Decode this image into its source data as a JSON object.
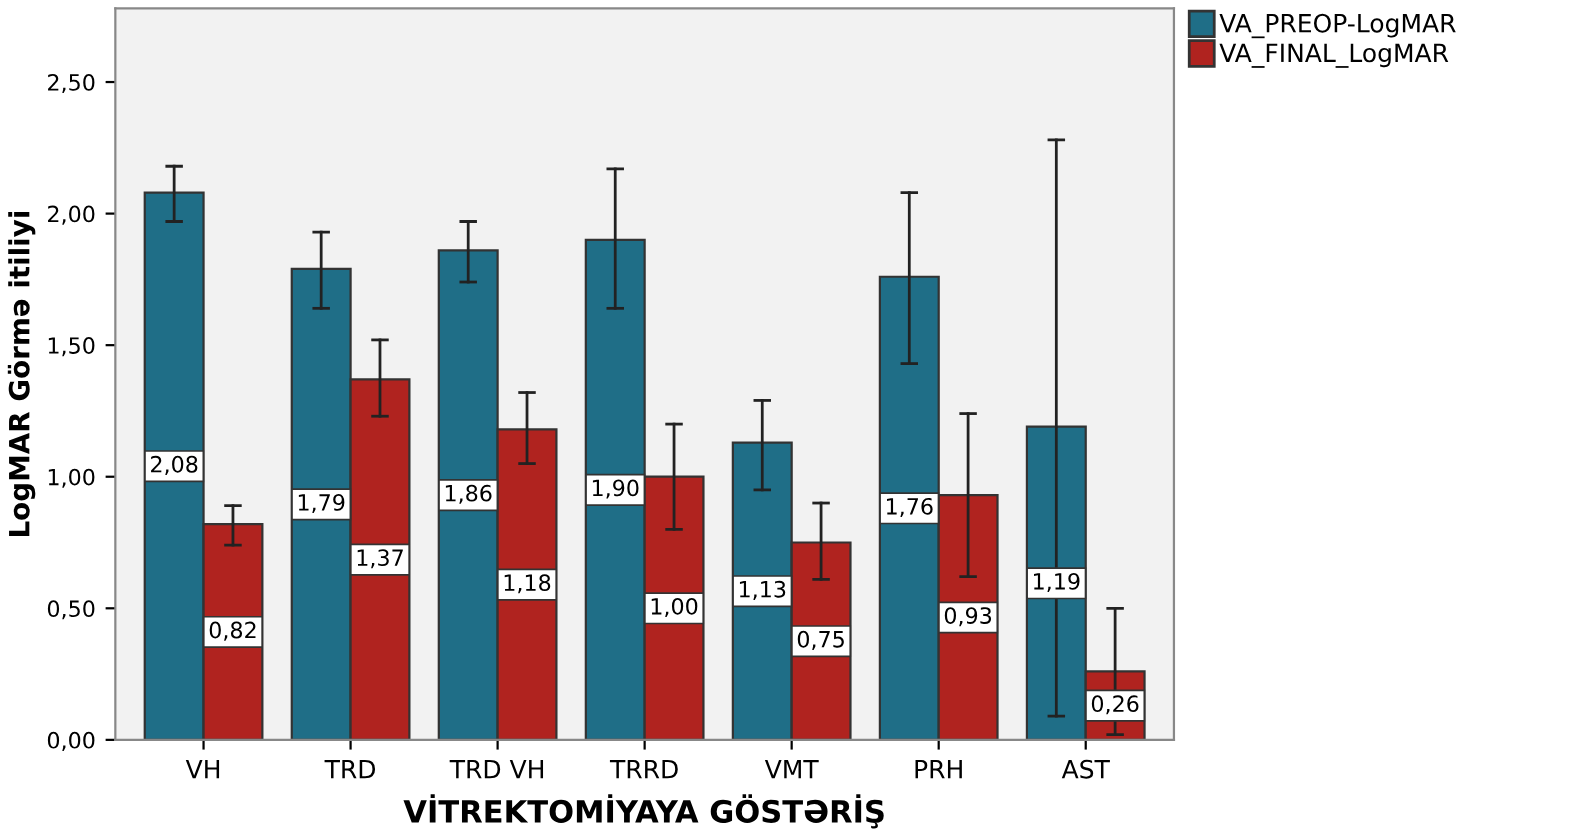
{
  "chart_data": {
    "type": "bar",
    "xlabel": "VİTREKTOMİYAYA GÖSTƏRİŞ",
    "ylabel": "LogMAR Görmə itiliyi",
    "categories": [
      "VH",
      "TRD",
      "TRD VH",
      "TRRD",
      "VMT",
      "PRH",
      "AST"
    ],
    "series": [
      {
        "name": "VA_PREOP-LogMAR",
        "color": "#1f6e87",
        "values": [
          2.08,
          1.79,
          1.86,
          1.9,
          1.13,
          1.76,
          1.19
        ],
        "value_labels": [
          "2,08",
          "1,79",
          "1,86",
          "1,90",
          "1,13",
          "1,76",
          "1,19"
        ],
        "errors": [
          [
            1.97,
            2.18
          ],
          [
            1.64,
            1.93
          ],
          [
            1.74,
            1.97
          ],
          [
            1.64,
            2.17
          ],
          [
            0.95,
            1.29
          ],
          [
            1.43,
            2.08
          ],
          [
            0.09,
            2.28
          ]
        ]
      },
      {
        "name": "VA_FINAL_LogMAR",
        "color": "#b0231f",
        "values": [
          0.82,
          1.37,
          1.18,
          1.0,
          0.75,
          0.93,
          0.26
        ],
        "value_labels": [
          "0,82",
          "1,37",
          "1,18",
          "1,00",
          "0,75",
          "0,93",
          "0,26"
        ],
        "errors": [
          [
            0.74,
            0.89
          ],
          [
            1.23,
            1.52
          ],
          [
            1.05,
            1.32
          ],
          [
            0.8,
            1.2
          ],
          [
            0.61,
            0.9
          ],
          [
            0.62,
            1.24
          ],
          [
            0.02,
            0.5
          ]
        ]
      }
    ],
    "ylim": [
      0,
      2.78
    ],
    "yticks": [
      {
        "value": 0,
        "label": "0,00"
      },
      {
        "value": 0.5,
        "label": "0,50"
      },
      {
        "value": 1.0,
        "label": "1,00"
      },
      {
        "value": 1.5,
        "label": "1,50"
      },
      {
        "value": 2.0,
        "label": "2,00"
      },
      {
        "value": 2.5,
        "label": "2,50"
      }
    ],
    "grid": false,
    "legend": "top right"
  }
}
